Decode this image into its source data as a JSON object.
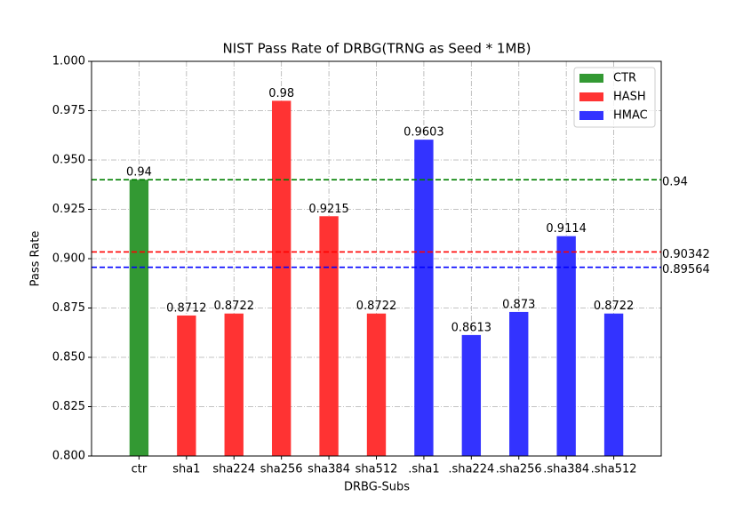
{
  "chart_data": {
    "type": "bar",
    "title": "NIST Pass Rate of DRBG(TRNG as Seed * 1MB)",
    "x_label": "DRBG-Subs",
    "y_label": "Pass Rate",
    "categories": [
      "ctr",
      "sha1",
      "sha224",
      "sha256",
      "sha384",
      "sha512",
      ".sha1",
      ".sha224",
      ".sha256",
      ".sha384",
      ".sha512"
    ],
    "series": [
      {
        "name": "CTR",
        "color": "#339933",
        "values": [
          0.94,
          null,
          null,
          null,
          null,
          null,
          null,
          null,
          null,
          null,
          null
        ]
      },
      {
        "name": "HASH",
        "color": "#ff3333",
        "values": [
          null,
          0.8712,
          0.8722,
          0.98,
          0.9215,
          0.8722,
          null,
          null,
          null,
          null,
          null
        ]
      },
      {
        "name": "HMAC",
        "color": "#3333ff",
        "values": [
          null,
          null,
          null,
          null,
          null,
          null,
          0.9603,
          0.8613,
          0.873,
          0.9114,
          0.8722
        ]
      }
    ],
    "reference_lines": [
      {
        "value": 0.94,
        "color": "#008000"
      },
      {
        "value": 0.90342,
        "color": "#ff0000"
      },
      {
        "value": 0.89564,
        "color": "#0000ff"
      }
    ],
    "ylim": [
      0.8,
      1.0
    ],
    "yticks": [
      {
        "value": 0.8,
        "label": "0.800"
      },
      {
        "value": 0.825,
        "label": "0.825"
      },
      {
        "value": 0.85,
        "label": "0.850"
      },
      {
        "value": 0.875,
        "label": "0.875"
      },
      {
        "value": 0.9,
        "label": "0.900"
      },
      {
        "value": 0.925,
        "label": "0.925"
      },
      {
        "value": 0.95,
        "label": "0.950"
      },
      {
        "value": 0.975,
        "label": "0.975"
      },
      {
        "value": 1.0,
        "label": "1.000"
      }
    ],
    "grid": true,
    "legend": "upper right"
  }
}
